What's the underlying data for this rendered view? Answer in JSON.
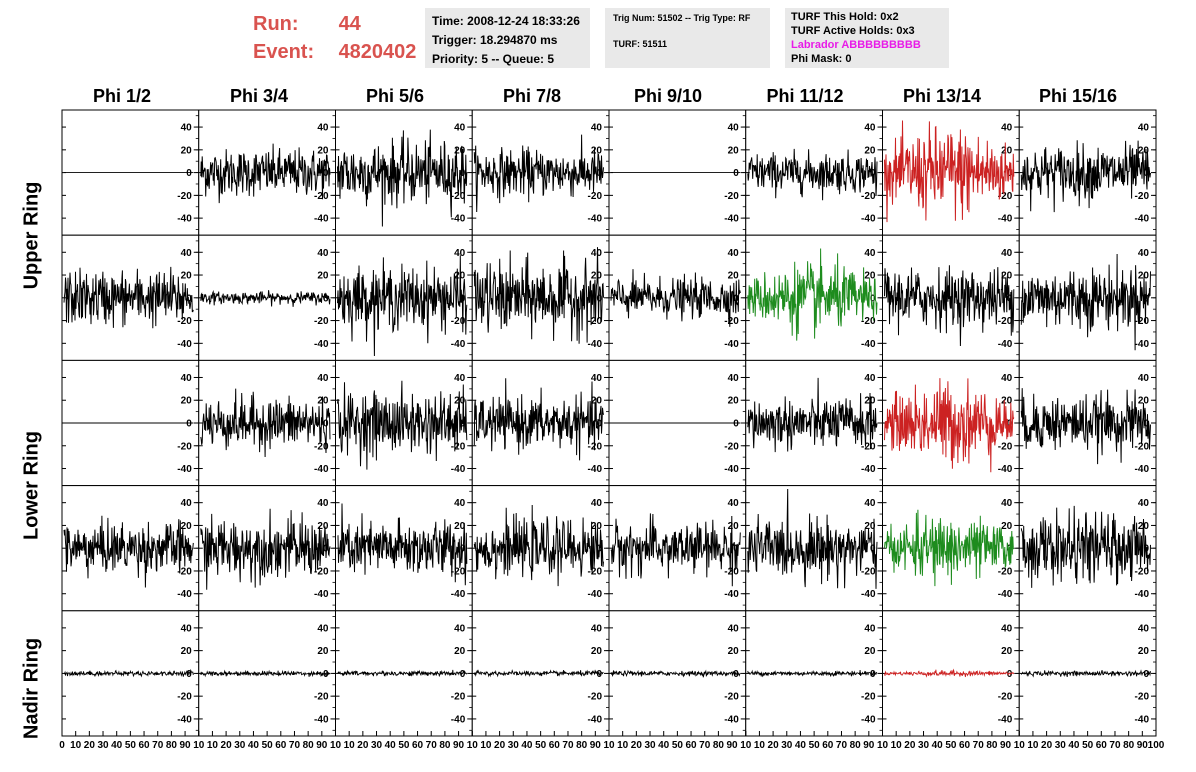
{
  "header": {
    "run_label": "Run:",
    "run_value": "44",
    "event_label": "Event:",
    "event_value": "4820402",
    "time": "Time: 2008-12-24 18:33:26",
    "trigger": "Trigger: 18.294870 ms",
    "priority": "Priority: 5 -- Queue: 5",
    "trig_num": "Trig Num: 51502 -- Trig Type: RF",
    "turf": "TURF: 51511",
    "turf_hold": "TURF This Hold: 0x2",
    "turf_active": "TURF Active Holds: 0x3",
    "labrador": "Labrador ABBBBBBBBB",
    "phi_mask": "Phi Mask: 0"
  },
  "columns": [
    "Phi 1/2",
    "Phi 3/4",
    "Phi 5/6",
    "Phi 7/8",
    "Phi 9/10",
    "Phi 11/12",
    "Phi 13/14",
    "Phi 15/16"
  ],
  "rings": [
    "Upper Ring",
    "Lower Ring",
    "Nadir Ring"
  ],
  "colors": {
    "normal": "#000000",
    "red": "#cc2222",
    "green": "#1e8c1e",
    "title_red": "#d9534f",
    "magenta": "#e81be8"
  },
  "chart_data": {
    "type": "line",
    "x_ticks": [
      0,
      10,
      20,
      30,
      40,
      50,
      60,
      70,
      80,
      90,
      100
    ],
    "x_tick_labels_bottom": "0 10 20 30 40 50 60 70 80 90 10 | 10 20 30 40 50 60 70 80 90 10 | ... | 10 20 30 40 50 60 70 80 90 100",
    "xlim": [
      0,
      100
    ],
    "y_ticks": [
      -40,
      -20,
      0,
      20,
      40
    ],
    "ylim": [
      -55,
      55
    ],
    "grid": false,
    "panels": [
      {
        "row": 0,
        "col": 0,
        "amp": 0,
        "color": "normal"
      },
      {
        "row": 0,
        "col": 1,
        "amp": 12,
        "color": "normal"
      },
      {
        "row": 0,
        "col": 2,
        "amp": 16,
        "color": "normal"
      },
      {
        "row": 0,
        "col": 3,
        "amp": 12,
        "color": "normal"
      },
      {
        "row": 0,
        "col": 4,
        "amp": 0,
        "color": "normal"
      },
      {
        "row": 0,
        "col": 5,
        "amp": 10,
        "color": "normal"
      },
      {
        "row": 0,
        "col": 6,
        "amp": 20,
        "color": "red"
      },
      {
        "row": 0,
        "col": 7,
        "amp": 14,
        "color": "normal"
      },
      {
        "row": 1,
        "col": 0,
        "amp": 14,
        "color": "normal"
      },
      {
        "row": 1,
        "col": 1,
        "amp": 3,
        "color": "normal"
      },
      {
        "row": 1,
        "col": 2,
        "amp": 16,
        "color": "normal"
      },
      {
        "row": 1,
        "col": 3,
        "amp": 18,
        "color": "normal"
      },
      {
        "row": 1,
        "col": 4,
        "amp": 10,
        "color": "normal"
      },
      {
        "row": 1,
        "col": 5,
        "amp": 15,
        "color": "green"
      },
      {
        "row": 1,
        "col": 6,
        "amp": 15,
        "color": "normal"
      },
      {
        "row": 1,
        "col": 7,
        "amp": 16,
        "color": "normal"
      },
      {
        "row": 2,
        "col": 0,
        "amp": 0,
        "color": "normal"
      },
      {
        "row": 2,
        "col": 1,
        "amp": 13,
        "color": "normal"
      },
      {
        "row": 2,
        "col": 2,
        "amp": 16,
        "color": "normal"
      },
      {
        "row": 2,
        "col": 3,
        "amp": 13,
        "color": "normal"
      },
      {
        "row": 2,
        "col": 4,
        "amp": 0,
        "color": "normal"
      },
      {
        "row": 2,
        "col": 5,
        "amp": 13,
        "color": "normal"
      },
      {
        "row": 2,
        "col": 6,
        "amp": 18,
        "color": "red"
      },
      {
        "row": 2,
        "col": 7,
        "amp": 14,
        "color": "normal"
      },
      {
        "row": 3,
        "col": 0,
        "amp": 13,
        "color": "normal"
      },
      {
        "row": 3,
        "col": 1,
        "amp": 15,
        "color": "normal"
      },
      {
        "row": 3,
        "col": 2,
        "amp": 14,
        "color": "normal"
      },
      {
        "row": 3,
        "col": 3,
        "amp": 14,
        "color": "normal"
      },
      {
        "row": 3,
        "col": 4,
        "amp": 13,
        "color": "normal"
      },
      {
        "row": 3,
        "col": 5,
        "amp": 15,
        "color": "normal"
      },
      {
        "row": 3,
        "col": 6,
        "amp": 14,
        "color": "green"
      },
      {
        "row": 3,
        "col": 7,
        "amp": 17,
        "color": "normal"
      },
      {
        "row": 4,
        "col": 0,
        "amp": 1.2,
        "color": "normal"
      },
      {
        "row": 4,
        "col": 1,
        "amp": 1.2,
        "color": "normal"
      },
      {
        "row": 4,
        "col": 2,
        "amp": 1.2,
        "color": "normal"
      },
      {
        "row": 4,
        "col": 3,
        "amp": 1.2,
        "color": "normal"
      },
      {
        "row": 4,
        "col": 4,
        "amp": 1.2,
        "color": "normal"
      },
      {
        "row": 4,
        "col": 5,
        "amp": 1.2,
        "color": "normal"
      },
      {
        "row": 4,
        "col": 6,
        "amp": 1.2,
        "color": "red"
      },
      {
        "row": 4,
        "col": 7,
        "amp": 1.2,
        "color": "normal"
      }
    ]
  }
}
